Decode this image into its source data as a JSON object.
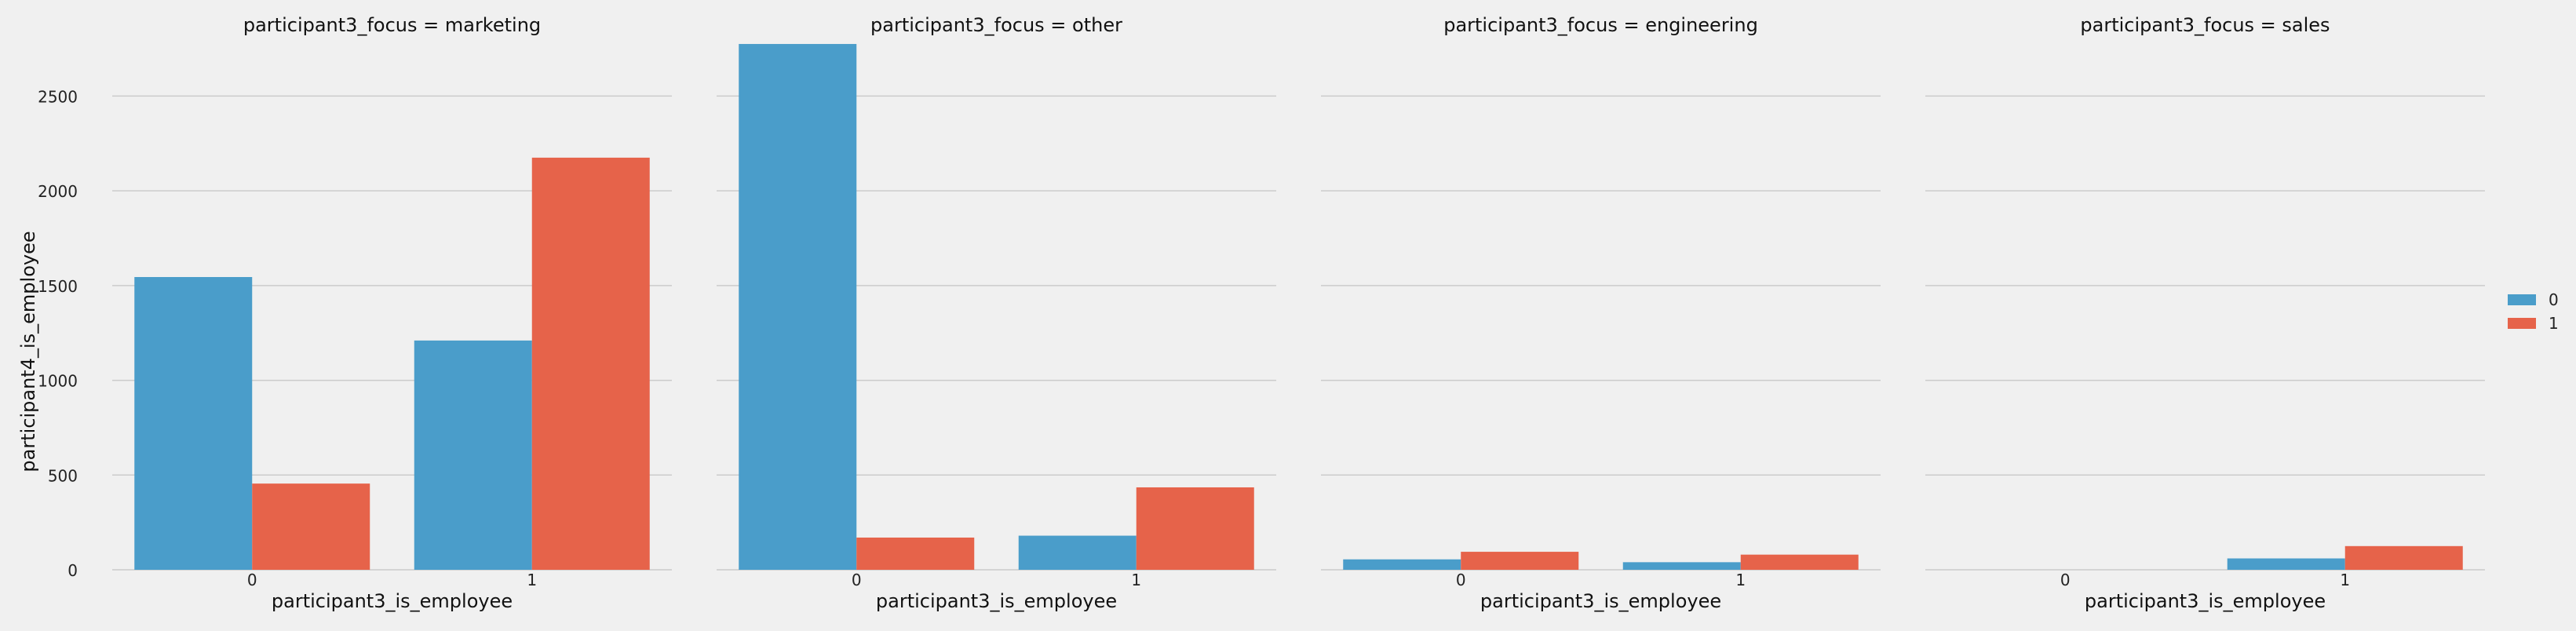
{
  "chart_data": {
    "type": "bar",
    "ylabel": "participant4_is_employee",
    "ylim": [
      0,
      2800
    ],
    "yticks": [
      0,
      500,
      1000,
      1500,
      2000,
      2500
    ],
    "grid": true,
    "legend_position": "right",
    "hue_colors": [
      "#4a9dca",
      "#e6634a"
    ],
    "legend": [
      {
        "label": "0",
        "color": "#4a9dca"
      },
      {
        "label": "1",
        "color": "#e6634a"
      }
    ],
    "panels": [
      {
        "title": "participant3_focus = marketing",
        "xlabel": "participant3_is_employee",
        "categories": [
          "0",
          "1"
        ],
        "series": [
          {
            "name": "0",
            "values": [
              1545,
              1210
            ]
          },
          {
            "name": "1",
            "values": [
              455,
              2175
            ]
          }
        ]
      },
      {
        "title": "participant3_focus = other",
        "xlabel": "participant3_is_employee",
        "categories": [
          "0",
          "1"
        ],
        "series": [
          {
            "name": "0",
            "values": [
              2775,
              180
            ]
          },
          {
            "name": "1",
            "values": [
              170,
              435
            ]
          }
        ]
      },
      {
        "title": "participant3_focus = engineering",
        "xlabel": "participant3_is_employee",
        "categories": [
          "0",
          "1"
        ],
        "series": [
          {
            "name": "0",
            "values": [
              55,
              40
            ]
          },
          {
            "name": "1",
            "values": [
              95,
              80
            ]
          }
        ]
      },
      {
        "title": "participant3_focus = sales",
        "xlabel": "participant3_is_employee",
        "categories": [
          "0",
          "1"
        ],
        "series": [
          {
            "name": "0",
            "values": [
              0,
              60
            ]
          },
          {
            "name": "1",
            "values": [
              0,
              125
            ]
          }
        ]
      }
    ]
  }
}
